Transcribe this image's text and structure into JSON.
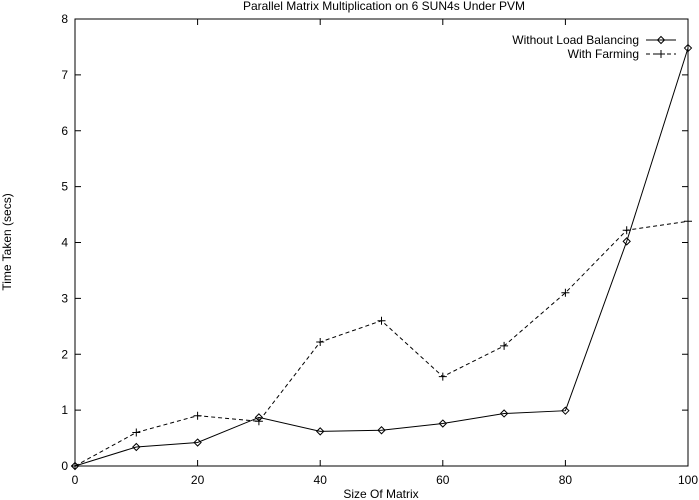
{
  "chart_data": {
    "type": "line",
    "title": "Parallel Matrix Multiplication on 6 SUN4s Under PVM",
    "xlabel": "Size Of Matrix",
    "ylabel": "Time Taken (secs)",
    "xlim": [
      0,
      100
    ],
    "ylim": [
      0,
      8
    ],
    "xticks": [
      0,
      20,
      40,
      60,
      80,
      100
    ],
    "yticks": [
      0,
      1,
      2,
      3,
      4,
      5,
      6,
      7,
      8
    ],
    "grid": false,
    "legend_position": "top-right",
    "series": [
      {
        "name": "Without Load Balancing",
        "style": "solid",
        "marker": "diamond",
        "color": "#000000",
        "x": [
          0,
          10,
          20,
          30,
          40,
          50,
          60,
          70,
          80,
          90,
          100
        ],
        "y": [
          0,
          0.34,
          0.42,
          0.87,
          0.62,
          0.64,
          0.76,
          0.94,
          0.99,
          4.02,
          7.48
        ]
      },
      {
        "name": "With Farming",
        "style": "dashed",
        "marker": "plus",
        "color": "#000000",
        "x": [
          0,
          10,
          20,
          30,
          40,
          50,
          60,
          70,
          80,
          90,
          100
        ],
        "y": [
          0,
          0.6,
          0.9,
          0.8,
          2.22,
          2.6,
          1.6,
          2.15,
          3.1,
          4.22,
          4.38
        ]
      }
    ]
  }
}
